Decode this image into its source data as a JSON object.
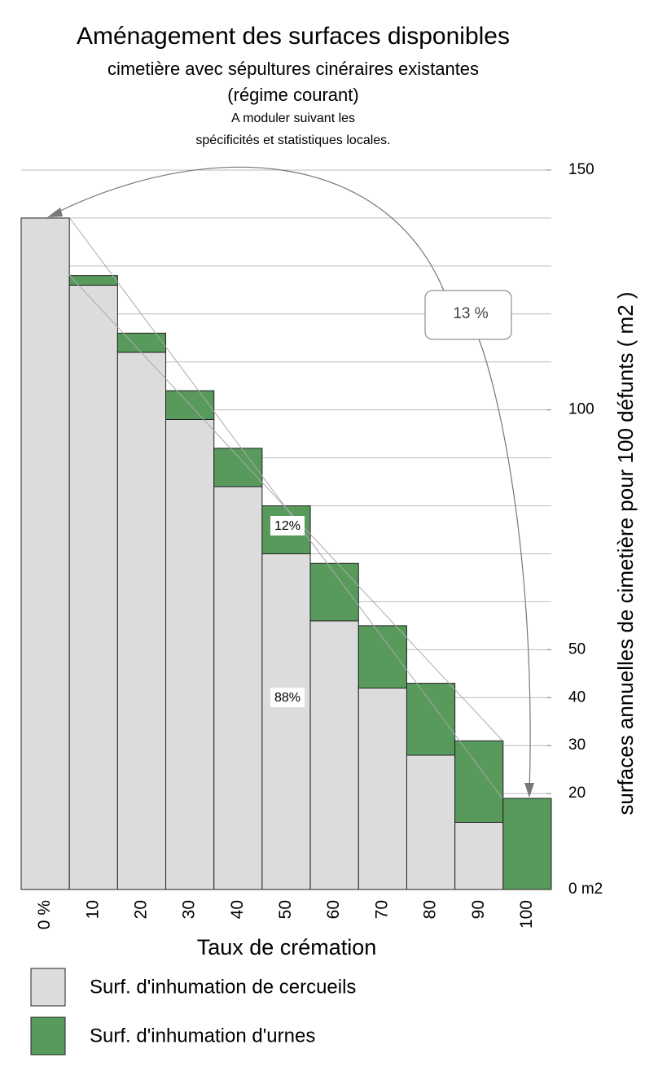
{
  "chart_data": {
    "type": "stacked_bar",
    "title": "Aménagement des surfaces disponibles",
    "subtitle": "cimetière avec sépultures cinéraires existantes",
    "subtitle2": "(régime courant)",
    "note": [
      "A moduler suivant les",
      "spécificités et statistiques locales."
    ],
    "x_label": "Taux de crémation",
    "y_label": "surfaces annuelles de cimetière pour 100 défunts ( m2 )",
    "categories": [
      "0 %",
      "10",
      "20",
      "30",
      "40",
      "50",
      "60",
      "70",
      "80",
      "90",
      "100"
    ],
    "series": [
      {
        "name": "Surf.  d'inhumation de cercueils",
        "color": "#dcdcdc",
        "values": [
          140,
          126,
          112,
          98,
          84,
          70,
          56,
          42,
          28,
          14,
          0
        ]
      },
      {
        "name": "Surf.  d'inhumation d'urnes",
        "color": "#589a5c",
        "values": [
          0,
          2,
          4,
          6,
          8,
          10,
          12,
          13,
          15,
          17,
          19
        ]
      }
    ],
    "ylim": [
      0,
      150
    ],
    "yticks": [
      {
        "value": 0,
        "label": "0 m2"
      },
      20,
      30,
      40,
      50,
      100,
      150
    ],
    "grid_yticks": [
      10,
      20,
      30,
      40,
      50,
      60,
      70,
      80,
      90,
      100,
      110,
      120,
      130,
      140,
      150
    ],
    "grid": true,
    "annotations": [
      "13 %",
      "12%",
      "88%"
    ]
  }
}
